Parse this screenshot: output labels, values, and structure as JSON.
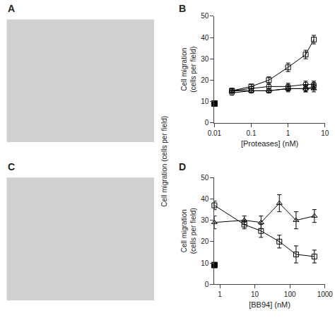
{
  "chart_data": [
    {
      "type": "placeholder",
      "title": "A"
    },
    {
      "type": "line",
      "title": "B",
      "xlabel": "[Proteases] (nM)",
      "ylabel": "Cell migration\n(cells per field)",
      "log": "x",
      "grid": false,
      "xlim": [
        0.01,
        10
      ],
      "xticks": [
        0.01,
        0.1,
        1,
        10
      ],
      "ylim": [
        0,
        50
      ],
      "yticks": [
        0,
        10,
        20,
        30,
        40,
        50
      ],
      "annotations": [
        "Cell migration (cells per field)"
      ],
      "series": [
        {
          "x": [
            0.01
          ],
          "values": [
            9
          ],
          "marker": "square",
          "line_style": "none",
          "color": "black"
        },
        {
          "x": [
            0.03,
            0.1,
            0.3,
            1.0,
            3.0,
            5.0
          ],
          "values": [
            15,
            17,
            20,
            26,
            32,
            39
          ],
          "yerr": [
            1,
            1,
            1.5,
            2,
            2,
            2
          ],
          "marker": "square-open",
          "line_style": "solid",
          "color": "black"
        },
        {
          "x": [
            0.03,
            0.1,
            0.3,
            1.0,
            3.0,
            5.0
          ],
          "values": [
            15,
            16,
            17,
            17,
            18,
            18
          ],
          "yerr": [
            1,
            1,
            1,
            1.5,
            1.5,
            1.5
          ],
          "marker": "circle-open",
          "line_style": "solid",
          "color": "black"
        },
        {
          "x": [
            0.03,
            0.1,
            0.3,
            1.0,
            3.0,
            5.0
          ],
          "values": [
            14,
            15,
            15,
            16,
            16,
            17
          ],
          "yerr": [
            1,
            1,
            1,
            1,
            1.5,
            1.5
          ],
          "marker": "circle-open",
          "line_style": "solid",
          "color": "black"
        },
        {
          "x": [
            0.03,
            0.1,
            0.3,
            1.0,
            3.0,
            5.0
          ],
          "values": [
            15,
            15,
            15,
            16,
            16,
            16
          ],
          "yerr": [
            1,
            1,
            1,
            1.5,
            1.5,
            1.5
          ],
          "marker": "triangle-up-open",
          "line_style": "solid",
          "color": "black"
        }
      ]
    },
    {
      "type": "placeholder",
      "title": "C"
    },
    {
      "type": "line",
      "title": "D",
      "xlabel": "[BB94] (nM)",
      "ylabel": "Cell migration\n(cells per field)",
      "log": "x",
      "grid": false,
      "xlim": [
        0.7,
        1000
      ],
      "xticks": [
        1,
        10,
        100,
        1000
      ],
      "ylim": [
        0,
        50
      ],
      "yticks": [
        0,
        10,
        20,
        30,
        40,
        50
      ],
      "series": [
        {
          "x": [
            0.7
          ],
          "values": [
            9
          ],
          "marker": "square",
          "line_style": "none",
          "color": "black"
        },
        {
          "x": [
            0.7,
            5,
            15,
            50,
            150,
            500
          ],
          "values": [
            37,
            28,
            25,
            20,
            14,
            13
          ],
          "yerr": [
            2,
            2,
            3,
            3,
            4,
            3
          ],
          "marker": "square-open",
          "line_style": "solid",
          "color": "black"
        },
        {
          "x": [
            0.7,
            5,
            15,
            50,
            150,
            500
          ],
          "values": [
            29,
            30,
            29,
            38,
            30,
            32
          ],
          "yerr": [
            3,
            2,
            3,
            4,
            4,
            3
          ],
          "marker": "triangle-up-open",
          "line_style": "solid",
          "color": "black"
        }
      ]
    }
  ]
}
